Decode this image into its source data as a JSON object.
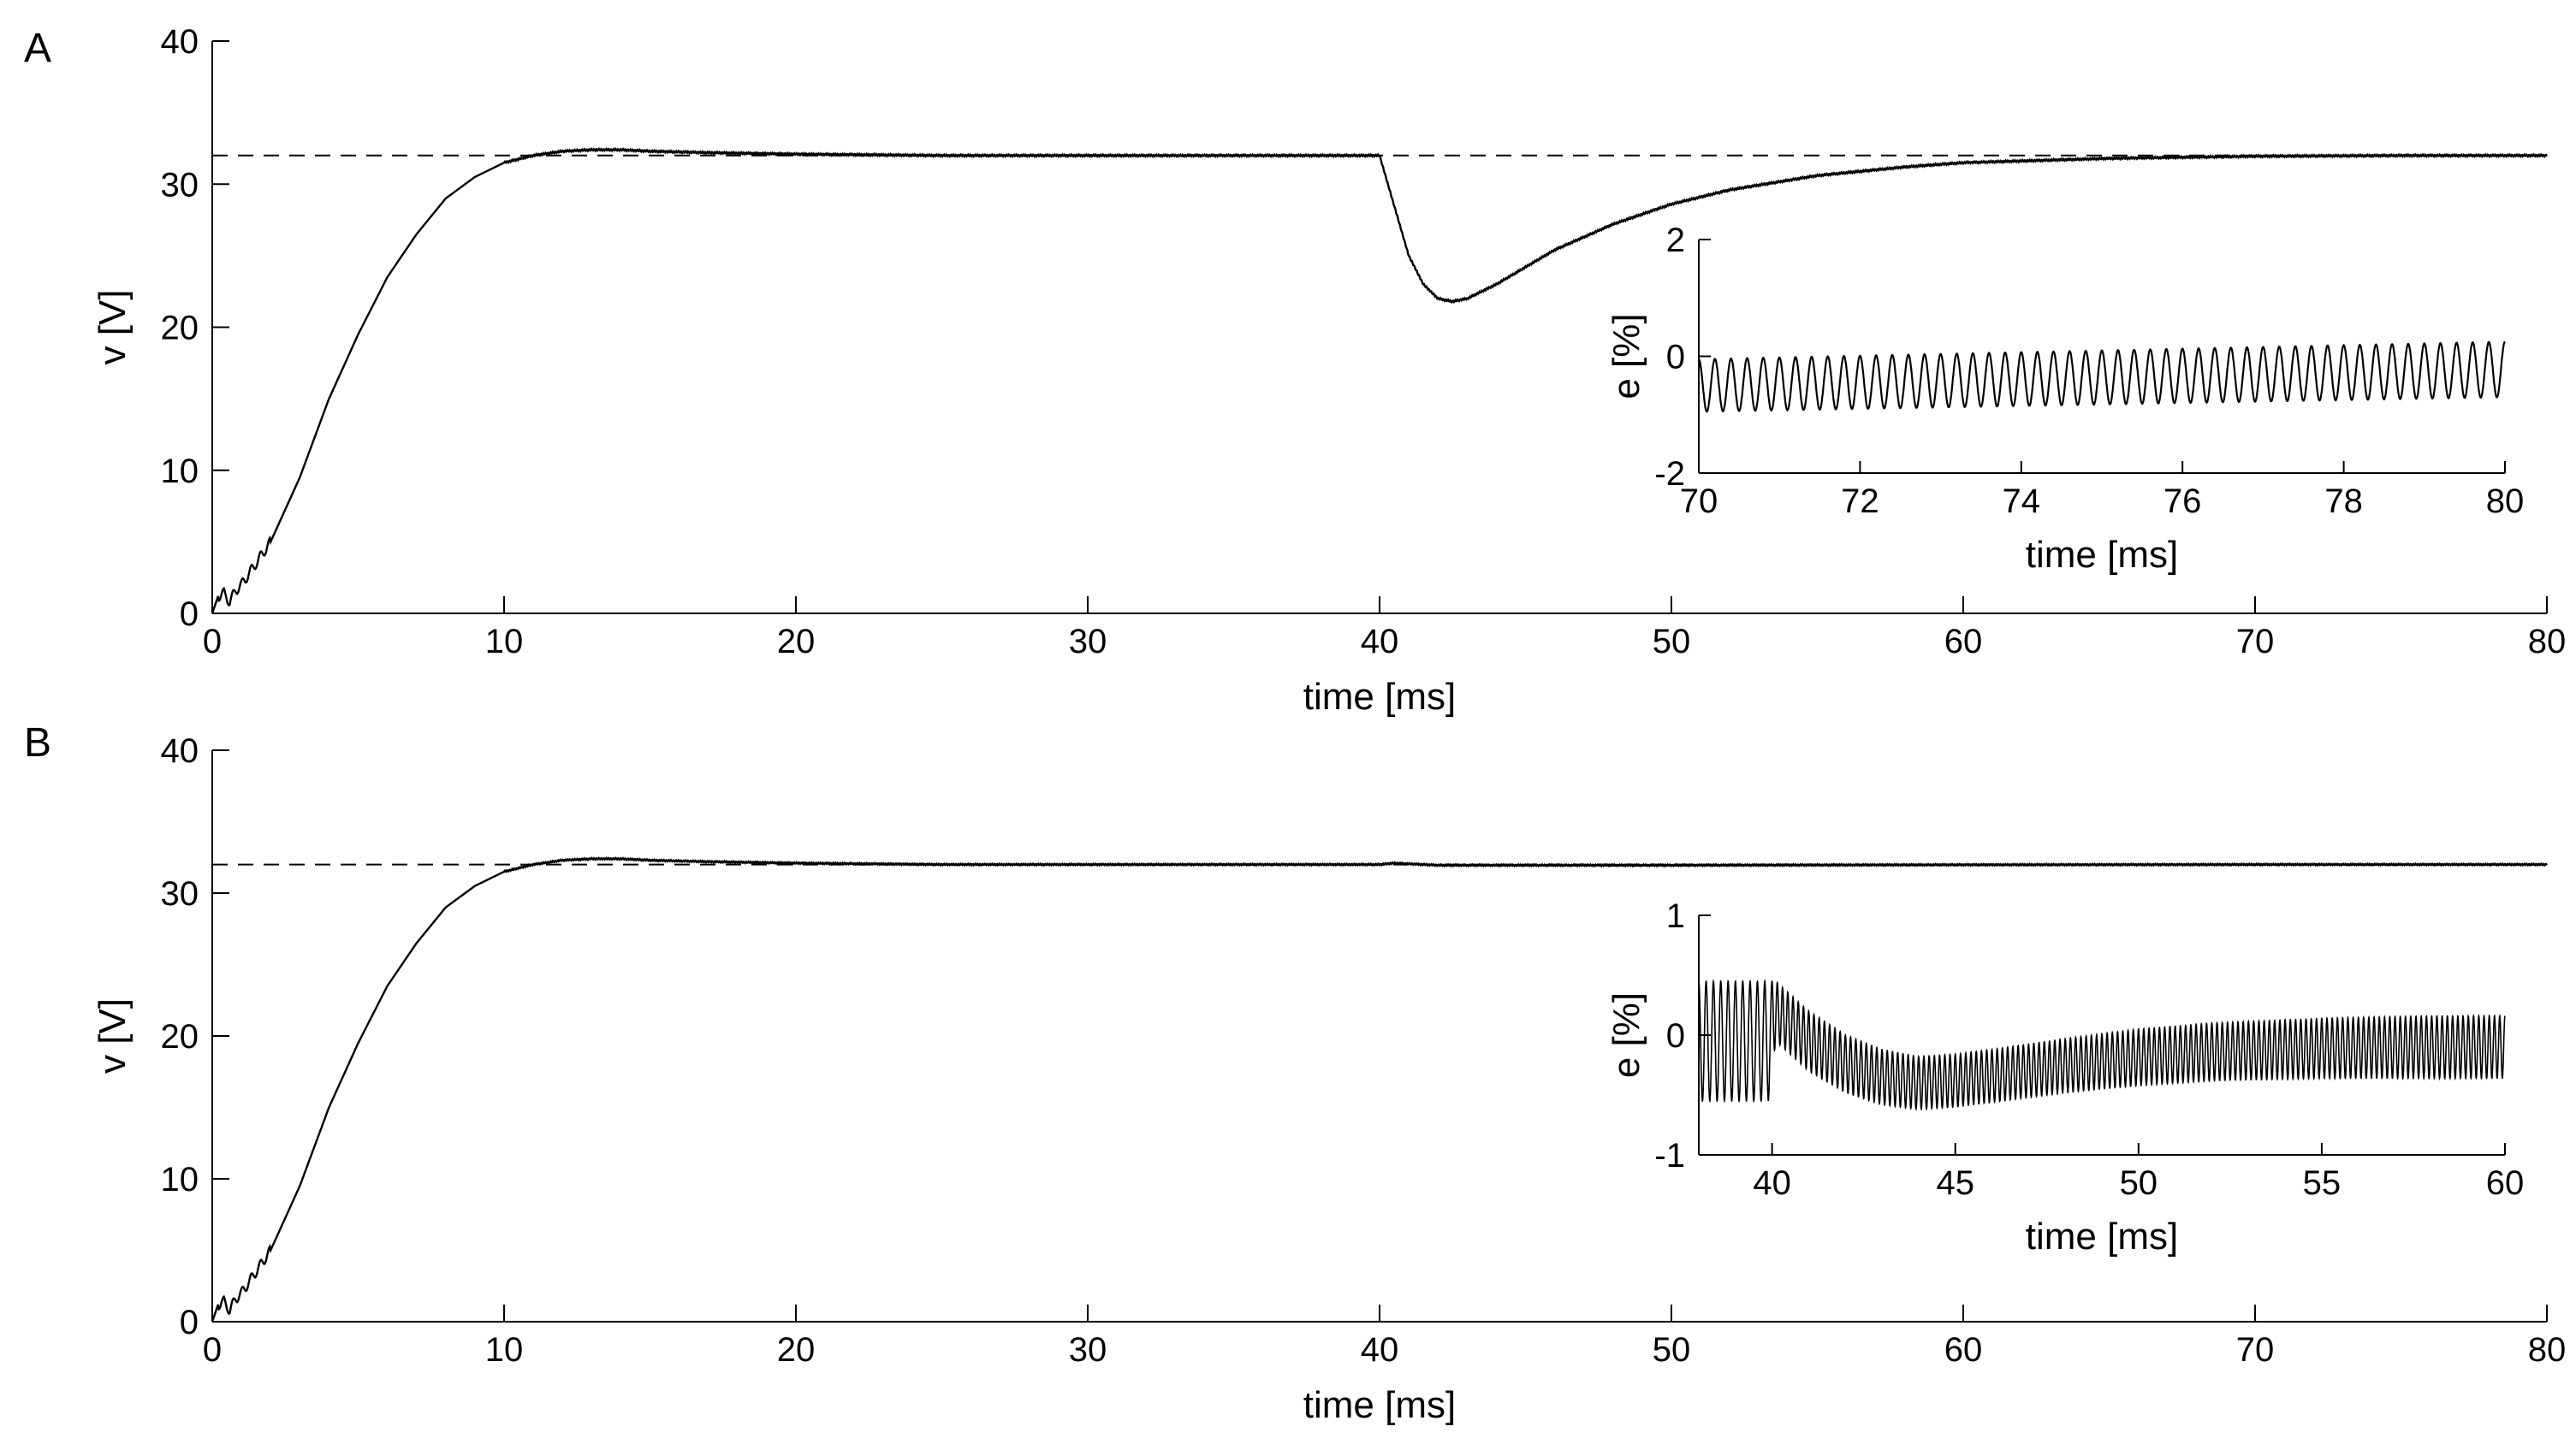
{
  "figure": {
    "panels": [
      "A",
      "B"
    ]
  },
  "chart_data": [
    {
      "panel": "A",
      "type": "line",
      "xlabel": "time [ms]",
      "ylabel": "v [V]",
      "xlim": [
        0,
        80
      ],
      "ylim": [
        0,
        40
      ],
      "xticks": [
        0,
        10,
        20,
        30,
        40,
        50,
        60,
        70,
        80
      ],
      "yticks": [
        0,
        10,
        20,
        30,
        40
      ],
      "grid": false,
      "reference": {
        "style": "dashed",
        "y": 32
      },
      "series": [
        {
          "style": "solid",
          "x": [
            0,
            0.2,
            0.4,
            0.6,
            0.8,
            1,
            1.5,
            2,
            3,
            4,
            5,
            6,
            7,
            8,
            9,
            10,
            11,
            12,
            13,
            14,
            15,
            17,
            20,
            25,
            30,
            35,
            40,
            40.5,
            41,
            41.5,
            42,
            42.5,
            43,
            44,
            45,
            46,
            48,
            50,
            52,
            55,
            58,
            60,
            65,
            70,
            75,
            80
          ],
          "y": [
            0,
            1.2,
            1.4,
            0.8,
            1.6,
            2.0,
            3.5,
            5.0,
            9.5,
            15.0,
            19.5,
            23.5,
            26.5,
            29.0,
            30.5,
            31.5,
            32.0,
            32.3,
            32.4,
            32.4,
            32.3,
            32.2,
            32.1,
            32.0,
            32.0,
            32.0,
            32.0,
            28.5,
            25.0,
            23.0,
            22.0,
            21.8,
            22.0,
            23.0,
            24.2,
            25.4,
            27.2,
            28.6,
            29.6,
            30.6,
            31.2,
            31.5,
            31.8,
            31.95,
            32.0,
            32.0
          ]
        }
      ]
    },
    {
      "panel": "A-inset",
      "type": "line",
      "xlabel": "time [ms]",
      "ylabel": "e [%]",
      "xlim": [
        70,
        80
      ],
      "ylim": [
        -2,
        2
      ],
      "xticks": [
        70,
        72,
        74,
        76,
        78,
        80
      ],
      "yticks": [
        -2,
        0,
        2
      ],
      "grid": false,
      "series": [
        {
          "style": "solid",
          "oscillation": {
            "cycles": 50,
            "start_min": -0.95,
            "start_max": -0.05,
            "end_min": -0.7,
            "end_max": 0.25
          }
        }
      ]
    },
    {
      "panel": "B",
      "type": "line",
      "xlabel": "time [ms]",
      "ylabel": "v [V]",
      "xlim": [
        0,
        80
      ],
      "ylim": [
        0,
        40
      ],
      "xticks": [
        0,
        10,
        20,
        30,
        40,
        50,
        60,
        70,
        80
      ],
      "yticks": [
        0,
        10,
        20,
        30,
        40
      ],
      "grid": false,
      "reference": {
        "style": "dashed",
        "y": 32
      },
      "series": [
        {
          "style": "solid",
          "x": [
            0,
            0.2,
            0.4,
            0.6,
            0.8,
            1,
            1.5,
            2,
            3,
            4,
            5,
            6,
            7,
            8,
            9,
            10,
            11,
            12,
            13,
            14,
            15,
            17,
            20,
            25,
            30,
            35,
            40,
            40.5,
            42,
            45,
            50,
            60,
            70,
            80
          ],
          "y": [
            0,
            1.2,
            1.4,
            0.8,
            1.6,
            2.0,
            3.5,
            5.0,
            9.5,
            15.0,
            19.5,
            23.5,
            26.5,
            29.0,
            30.5,
            31.5,
            32.0,
            32.3,
            32.4,
            32.4,
            32.3,
            32.2,
            32.1,
            32.0,
            32.0,
            32.0,
            32.0,
            32.1,
            31.95,
            31.95,
            31.95,
            31.98,
            32.0,
            32.0
          ]
        }
      ]
    },
    {
      "panel": "B-inset",
      "type": "line",
      "xlabel": "time [ms]",
      "ylabel": "e [%]",
      "xlim": [
        38,
        60
      ],
      "ylim": [
        -1,
        1
      ],
      "xticks": [
        40,
        45,
        50,
        55,
        60
      ],
      "yticks": [
        -1,
        0,
        1
      ],
      "grid": false,
      "series": [
        {
          "style": "solid",
          "envelope": {
            "x": [
              38,
              39.9,
              40.1,
              41,
              42,
              43,
              44,
              45,
              46,
              48,
              50,
              52,
              55,
              58,
              60
            ],
            "upper": [
              0.45,
              0.45,
              0.45,
              0.2,
              0.0,
              -0.12,
              -0.18,
              -0.16,
              -0.12,
              -0.03,
              0.05,
              0.1,
              0.14,
              0.16,
              0.16
            ],
            "lower": [
              -0.55,
              -0.55,
              -0.05,
              -0.3,
              -0.48,
              -0.58,
              -0.62,
              -0.6,
              -0.56,
              -0.48,
              -0.42,
              -0.38,
              -0.36,
              -0.36,
              -0.36
            ]
          },
          "oscillation": {
            "cycles_before_40": 10,
            "cycles_after_40": 140
          }
        }
      ]
    }
  ]
}
